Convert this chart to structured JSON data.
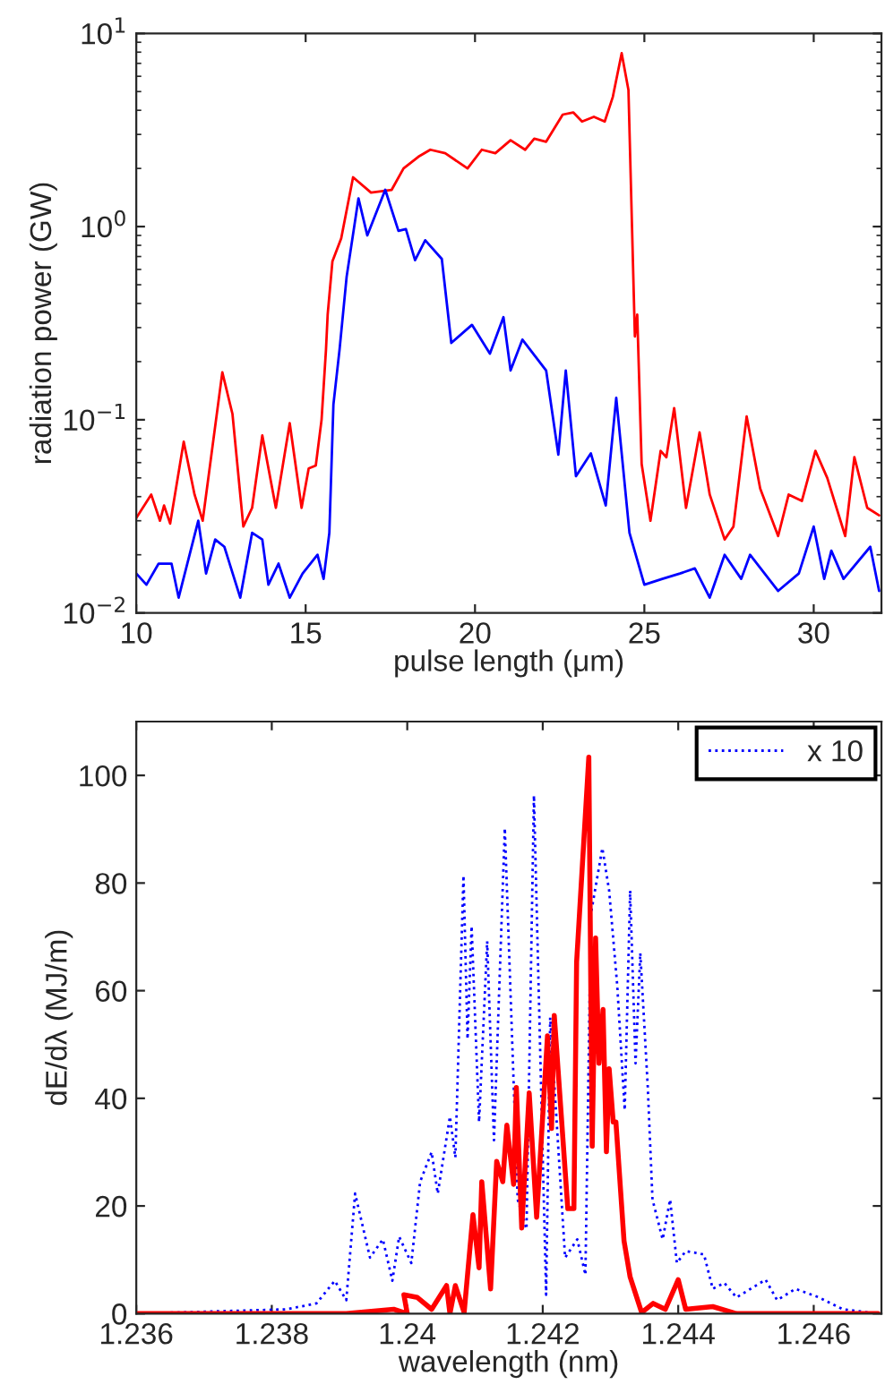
{
  "chart_data": [
    {
      "type": "line",
      "xlabel": "pulse length (μm)",
      "ylabel": "radiation power (GW)",
      "log": "y",
      "xlim": [
        10,
        32
      ],
      "ylim": [
        0.01,
        10
      ],
      "xticks": [
        10,
        15,
        20,
        25,
        30
      ],
      "yticks": [
        {
          "value": 0.01,
          "label": "10$^{−2}$"
        },
        {
          "value": 0.1,
          "label": "10$^{−1}$"
        },
        {
          "value": 1,
          "label": "10$^{0}$"
        },
        {
          "value": 10,
          "label": "10$^{1}$"
        }
      ],
      "series": [
        {
          "color": "#ff0000",
          "line_style": "solid",
          "x": [
            10.0,
            10.44,
            10.7,
            10.82,
            11.0,
            11.4,
            11.72,
            11.96,
            12.54,
            12.84,
            13.16,
            13.42,
            13.72,
            14.12,
            14.53,
            14.88,
            15.09,
            15.3,
            15.47,
            15.6,
            15.65,
            15.79,
            16.05,
            16.4,
            16.93,
            17.54,
            17.89,
            18.33,
            18.68,
            19.12,
            19.78,
            20.2,
            20.6,
            21.05,
            21.48,
            21.75,
            22.1,
            22.59,
            22.9,
            23.16,
            23.51,
            23.83,
            24.07,
            24.33,
            24.53,
            24.72,
            24.79,
            24.92,
            25.18,
            25.48,
            25.65,
            25.88,
            26.23,
            26.63,
            26.93,
            27.37,
            27.63,
            28.02,
            28.42,
            28.95,
            29.26,
            29.65,
            30.05,
            30.4,
            30.93,
            31.2,
            31.58,
            31.93
          ],
          "values": [
            0.031,
            0.041,
            0.03,
            0.036,
            0.029,
            0.077,
            0.041,
            0.03,
            0.176,
            0.107,
            0.028,
            0.035,
            0.083,
            0.035,
            0.096,
            0.035,
            0.056,
            0.058,
            0.1,
            0.23,
            0.35,
            0.66,
            0.87,
            1.8,
            1.5,
            1.55,
            2.0,
            2.3,
            2.5,
            2.4,
            2.0,
            2.5,
            2.4,
            2.8,
            2.5,
            2.85,
            2.75,
            3.8,
            3.9,
            3.5,
            3.7,
            3.5,
            4.7,
            7.9,
            5.1,
            0.27,
            0.35,
            0.059,
            0.03,
            0.069,
            0.064,
            0.115,
            0.035,
            0.086,
            0.041,
            0.024,
            0.028,
            0.104,
            0.044,
            0.025,
            0.041,
            0.038,
            0.069,
            0.05,
            0.025,
            0.064,
            0.035,
            0.032
          ]
        },
        {
          "color": "#0000ff",
          "line_style": "solid",
          "x": [
            10.0,
            10.3,
            10.66,
            11.04,
            11.25,
            11.83,
            12.06,
            12.33,
            12.6,
            13.07,
            13.42,
            13.72,
            13.9,
            14.2,
            14.53,
            14.91,
            15.35,
            15.53,
            15.7,
            15.82,
            16.0,
            16.21,
            16.56,
            16.82,
            17.35,
            17.74,
            17.96,
            18.23,
            18.53,
            19.02,
            19.3,
            19.91,
            20.44,
            20.84,
            21.05,
            21.4,
            22.1,
            22.46,
            22.68,
            22.98,
            23.42,
            23.86,
            24.17,
            24.56,
            25.0,
            25.53,
            26.05,
            26.49,
            26.93,
            27.37,
            27.86,
            28.12,
            28.95,
            29.56,
            30.0,
            30.31,
            30.52,
            30.88,
            31.67,
            31.93
          ],
          "values": [
            0.016,
            0.014,
            0.018,
            0.018,
            0.012,
            0.03,
            0.016,
            0.024,
            0.022,
            0.012,
            0.026,
            0.024,
            0.014,
            0.018,
            0.012,
            0.016,
            0.02,
            0.015,
            0.026,
            0.12,
            0.23,
            0.55,
            1.4,
            0.9,
            1.55,
            0.95,
            0.97,
            0.67,
            0.85,
            0.68,
            0.25,
            0.31,
            0.22,
            0.34,
            0.18,
            0.26,
            0.18,
            0.066,
            0.18,
            0.051,
            0.067,
            0.036,
            0.13,
            0.026,
            0.014,
            0.015,
            0.016,
            0.017,
            0.012,
            0.02,
            0.015,
            0.02,
            0.013,
            0.016,
            0.028,
            0.015,
            0.021,
            0.015,
            0.022,
            0.013
          ]
        }
      ]
    },
    {
      "type": "line",
      "xlabel": "wavelength (nm)",
      "ylabel": "dE/dλ (MJ/m)",
      "xlim": [
        1.236,
        1.247
      ],
      "ylim": [
        0,
        110
      ],
      "xticks": [
        1.236,
        1.238,
        1.24,
        1.242,
        1.244,
        1.246
      ],
      "yticks": [
        0,
        20,
        40,
        60,
        80,
        100
      ],
      "legend": "top right",
      "series": [
        {
          "name": "x 10",
          "color": "#0000ff",
          "line_style": "dotted",
          "x": [
            1.23602,
            1.23822,
            1.23866,
            1.23893,
            1.2391,
            1.23923,
            1.23945,
            1.23964,
            1.23978,
            1.23988,
            1.24006,
            1.24019,
            1.24036,
            1.24045,
            1.24063,
            1.24071,
            1.24083,
            1.24089,
            1.24095,
            1.24106,
            1.24118,
            1.24128,
            1.24144,
            1.24163,
            1.24176,
            1.24187,
            1.24205,
            1.24211,
            1.24233,
            1.24251,
            1.24263,
            1.24271,
            1.24288,
            1.24298,
            1.2431,
            1.24321,
            1.24329,
            1.24337,
            1.24344,
            1.24355,
            1.24362,
            1.24377,
            1.24388,
            1.24398,
            1.24411,
            1.24438,
            1.24451,
            1.24468,
            1.24486,
            1.24529,
            1.24546,
            1.24573,
            1.24608,
            1.24643,
            1.24695
          ],
          "values": [
            0,
            0.8,
            1.9,
            6.1,
            2.5,
            22.3,
            10.4,
            13.8,
            6.1,
            14.3,
            9.4,
            24.5,
            30,
            22.3,
            36.6,
            29,
            81.4,
            51,
            72,
            35.6,
            69.2,
            32.2,
            90.2,
            21.2,
            15.7,
            96.3,
            3.5,
            55,
            10.4,
            13.8,
            7.2,
            74.2,
            86.5,
            78.6,
            60.9,
            37.8,
            78.6,
            46.5,
            67,
            42.2,
            21.2,
            13.8,
            21.2,
            9.4,
            11.6,
            11,
            4.6,
            5.7,
            3,
            6.3,
            2.5,
            4.6,
            3,
            0.8,
            0
          ]
        },
        {
          "color": "#ff0000",
          "line_style": "solid",
          "x": [
            1.23602,
            1.2391,
            1.2398,
            1.24,
            1.23995,
            1.24015,
            1.24036,
            1.24058,
            1.24063,
            1.24071,
            1.24084,
            1.24097,
            1.24106,
            1.2411,
            1.24123,
            1.24132,
            1.24141,
            1.24147,
            1.24157,
            1.24161,
            1.24169,
            1.2418,
            1.24191,
            1.24207,
            1.24213,
            1.24217,
            1.24237,
            1.24246,
            1.2425,
            1.24268,
            1.24273,
            1.24278,
            1.24283,
            1.24289,
            1.24294,
            1.24298,
            1.24304,
            1.24308,
            1.2432,
            1.24329,
            1.24346,
            1.24363,
            1.24381,
            1.244,
            1.24411,
            1.24451,
            1.24486,
            1.24695
          ],
          "values": [
            0,
            0,
            0.8,
            0,
            3.5,
            3.0,
            0.8,
            5.2,
            0,
            5.2,
            0.2,
            18.4,
            8.5,
            24.5,
            4.6,
            28.3,
            24.5,
            35,
            24,
            42,
            15.9,
            41,
            17.9,
            51.6,
            34.4,
            55.4,
            19.5,
            19.5,
            65.3,
            103.4,
            31.1,
            69.8,
            46.5,
            56.5,
            30.1,
            45.5,
            35.6,
            35.6,
            13.5,
            6.8,
            0.2,
            1.9,
            0.8,
            6.3,
            0.8,
            1.3,
            0,
            0
          ]
        }
      ]
    }
  ]
}
